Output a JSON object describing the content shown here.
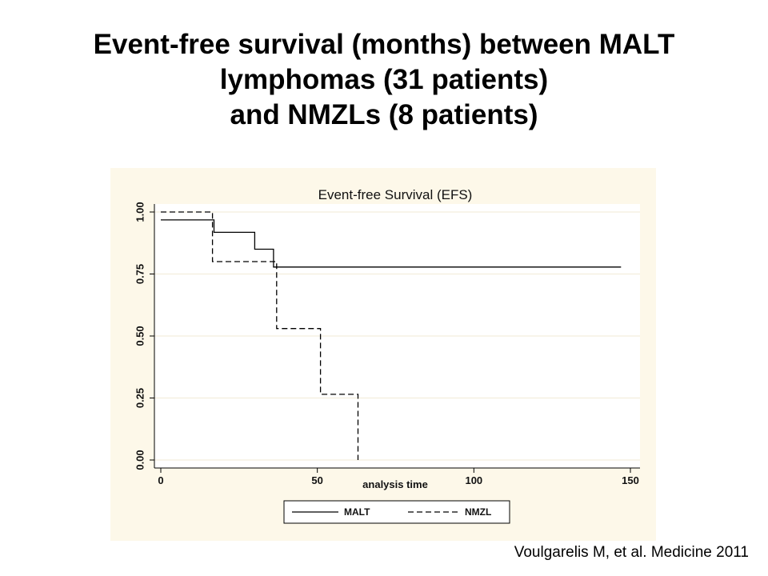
{
  "slide": {
    "title_lines": [
      "Event-free survival (months) between MALT",
      "lymphomas (31 patients)",
      "and NMZLs (8 patients)"
    ],
    "citation": "Voulgarelis M, et al. Medicine 2011"
  },
  "colors": {
    "panel_background": "#fdf8e9",
    "plot_background": "#ffffff",
    "axis_color": "#000000",
    "line_color": "#000000"
  },
  "chart_data": {
    "type": "line",
    "title": "Event-free Survival (EFS)",
    "xlabel": "analysis time",
    "ylabel": "",
    "xlim": [
      0,
      150
    ],
    "ylim": [
      0,
      1
    ],
    "x_ticks": [
      0,
      50,
      100,
      150
    ],
    "y_ticks": [
      "0.00",
      "0.25",
      "0.50",
      "0.75",
      "1.00"
    ],
    "legend_position": "bottom",
    "series": [
      {
        "name": "MALT",
        "line_style": "solid",
        "x": [
          0,
          17,
          17,
          30,
          30,
          36,
          36,
          147
        ],
        "y": [
          0.968,
          0.968,
          0.918,
          0.918,
          0.85,
          0.85,
          0.778,
          0.778
        ]
      },
      {
        "name": "NMZL",
        "line_style": "dashed",
        "x": [
          0,
          16.5,
          16.5,
          37,
          37,
          51,
          51,
          63,
          63
        ],
        "y": [
          1.0,
          1.0,
          0.8,
          0.8,
          0.53,
          0.53,
          0.265,
          0.265,
          0.0
        ]
      }
    ]
  }
}
